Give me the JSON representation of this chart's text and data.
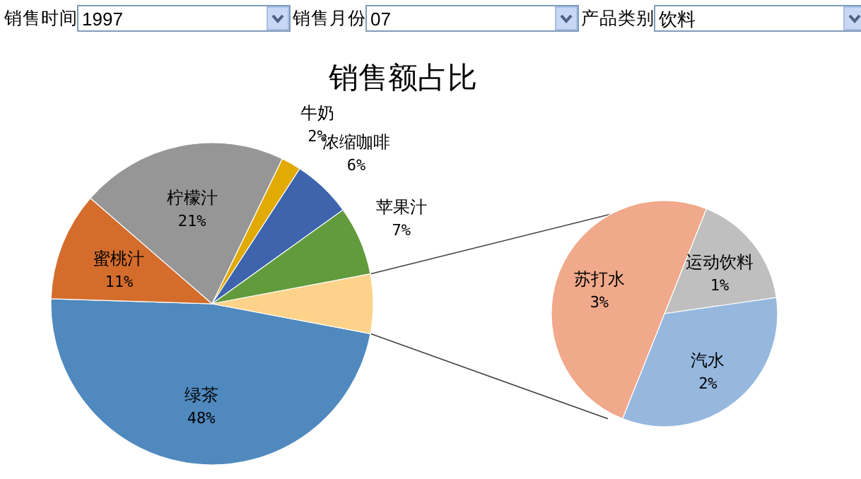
{
  "chart_data": [
    {
      "type": "pie",
      "title": "销售额占比",
      "annotations": [
        "销售时间",
        "1997",
        "销售月份",
        "07",
        "产品类别",
        "饮料"
      ],
      "categories": [
        "绿茶",
        "蜜桃汁",
        "柠檬汁",
        "牛奶",
        "浓缩咖啡",
        "苹果汁",
        null
      ],
      "values": [
        48,
        11,
        21,
        2,
        6,
        7,
        6
      ],
      "value_labels": [
        "48%",
        "11%",
        "21%",
        "2%",
        "6%",
        "7%",
        null
      ],
      "colors": [
        "#4f89bd",
        "#d46d2c",
        "#969696",
        "#e2aa05",
        "#3d64ad",
        "#629b3c",
        "#fdd28a"
      ]
    },
    {
      "type": "pie",
      "categories": [
        "运动饮料",
        "汽水",
        "苏打水"
      ],
      "values": [
        1,
        2,
        3
      ],
      "value_labels": [
        "1%",
        "2%",
        "3%"
      ],
      "colors": [
        "#bfbfbf",
        "#96b8df",
        "#f0a98a"
      ]
    }
  ]
}
